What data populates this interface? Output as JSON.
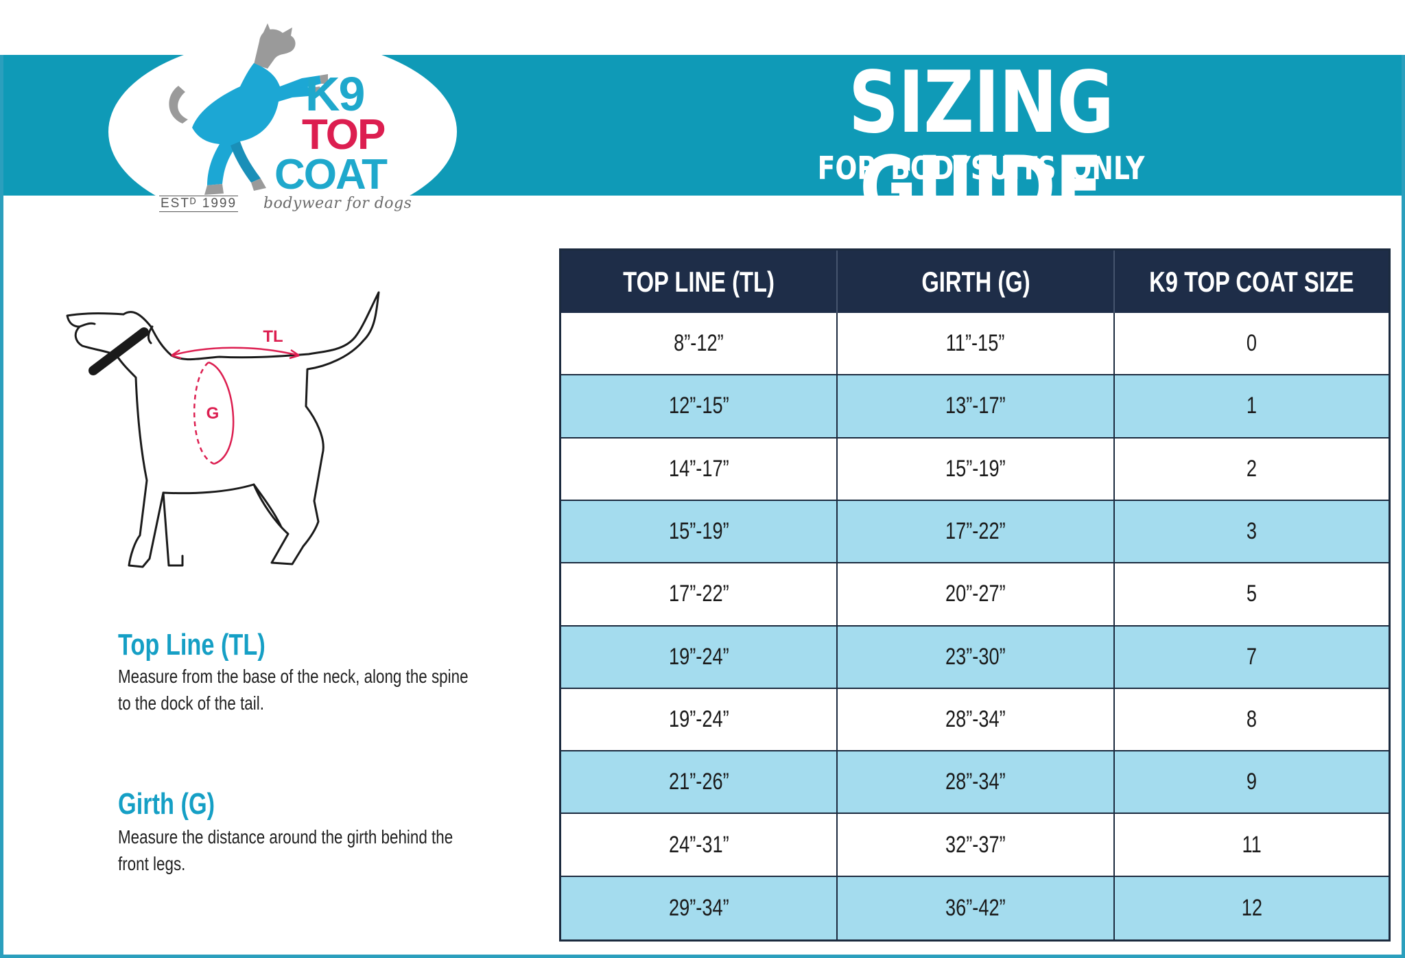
{
  "brand": {
    "logo_k9": "K9",
    "logo_top": "TOP",
    "logo_coat": "COAT",
    "established": "ESTᴰ 1999",
    "tagline": "bodywear for dogs",
    "colors": {
      "teal": "#0f9ab7",
      "red": "#dc1e50",
      "navy": "#1e2d48",
      "light_blue": "#a4dcee"
    }
  },
  "header": {
    "title": "SIZING GUIDE",
    "subtitle": "FOR  BODYSUITS ONLY"
  },
  "diagram": {
    "tl_label": "TL",
    "g_label": "G"
  },
  "instructions": {
    "top_line": {
      "heading": "Top Line (TL)",
      "text": "Measure from the base of the neck, along the spine to the dock of the tail."
    },
    "girth": {
      "heading": "Girth (G)",
      "text": "Measure the distance around the girth behind the front legs."
    }
  },
  "size_table": {
    "headers": [
      "TOP LINE (TL)",
      "GIRTH (G)",
      "K9 TOP COAT SIZE"
    ],
    "rows": [
      [
        "8”-12”",
        "11”-15”",
        "0"
      ],
      [
        "12”-15”",
        "13”-17”",
        "1"
      ],
      [
        "14”-17”",
        "15”-19”",
        "2"
      ],
      [
        "15”-19”",
        "17”-22”",
        "3"
      ],
      [
        "17”-22”",
        "20”-27”",
        "5"
      ],
      [
        "19”-24”",
        "23”-30”",
        "7"
      ],
      [
        "19”-24”",
        "28”-34”",
        "8"
      ],
      [
        "21”-26”",
        "28”-34”",
        "9"
      ],
      [
        "24”-31”",
        "32”-37”",
        "11"
      ],
      [
        "29”-34”",
        "36”-42”",
        "12"
      ]
    ]
  }
}
